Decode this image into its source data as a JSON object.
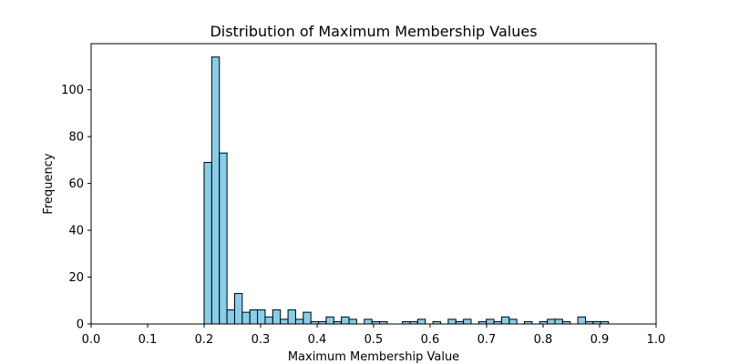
{
  "chart_data": {
    "type": "bar",
    "title": "Distribution of Maximum Membership Values",
    "xlabel": "Maximum Membership Value",
    "ylabel": "Frequency",
    "xlim": [
      0.0,
      1.0
    ],
    "ylim": [
      0,
      119.7
    ],
    "xticks": [
      "0.0",
      "0.1",
      "0.2",
      "0.3",
      "0.4",
      "0.5",
      "0.6",
      "0.7",
      "0.8",
      "0.9",
      "1.0"
    ],
    "yticks": [
      "0",
      "20",
      "40",
      "60",
      "80",
      "100"
    ],
    "grid": false,
    "bar_color": "#87CEEB",
    "edge_color": "#000000",
    "bin_start": 0.2,
    "bin_width": 0.0135,
    "values": [
      69,
      114,
      73,
      6,
      13,
      5,
      6,
      6,
      3,
      6,
      2,
      6,
      2,
      5,
      1,
      1,
      3,
      1,
      3,
      2,
      0,
      2,
      1,
      1,
      0,
      0,
      1,
      1,
      2,
      0,
      1,
      0,
      2,
      1,
      2,
      0,
      1,
      2,
      1,
      3,
      2,
      0,
      1,
      0,
      1,
      2,
      2,
      1,
      0,
      3,
      1,
      1,
      1
    ]
  }
}
